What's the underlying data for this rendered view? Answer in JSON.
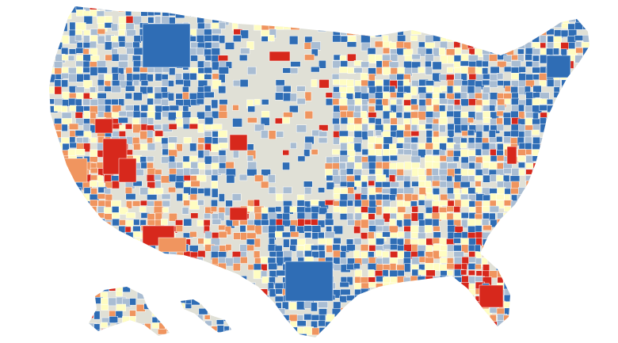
{
  "map": {
    "legend_text": "",
    "colors": {
      "background": "#ffffff",
      "no_data": "#e0e0d6",
      "dark_blue": "#2f6db5",
      "light_blue": "#a9bdd3",
      "pale_yellow": "#fffdc2",
      "orange": "#f0955f",
      "red": "#d7281c",
      "border": "#ffffff"
    },
    "category_order": [
      "dark_blue",
      "light_blue",
      "pale_yellow",
      "orange",
      "red"
    ]
  }
}
